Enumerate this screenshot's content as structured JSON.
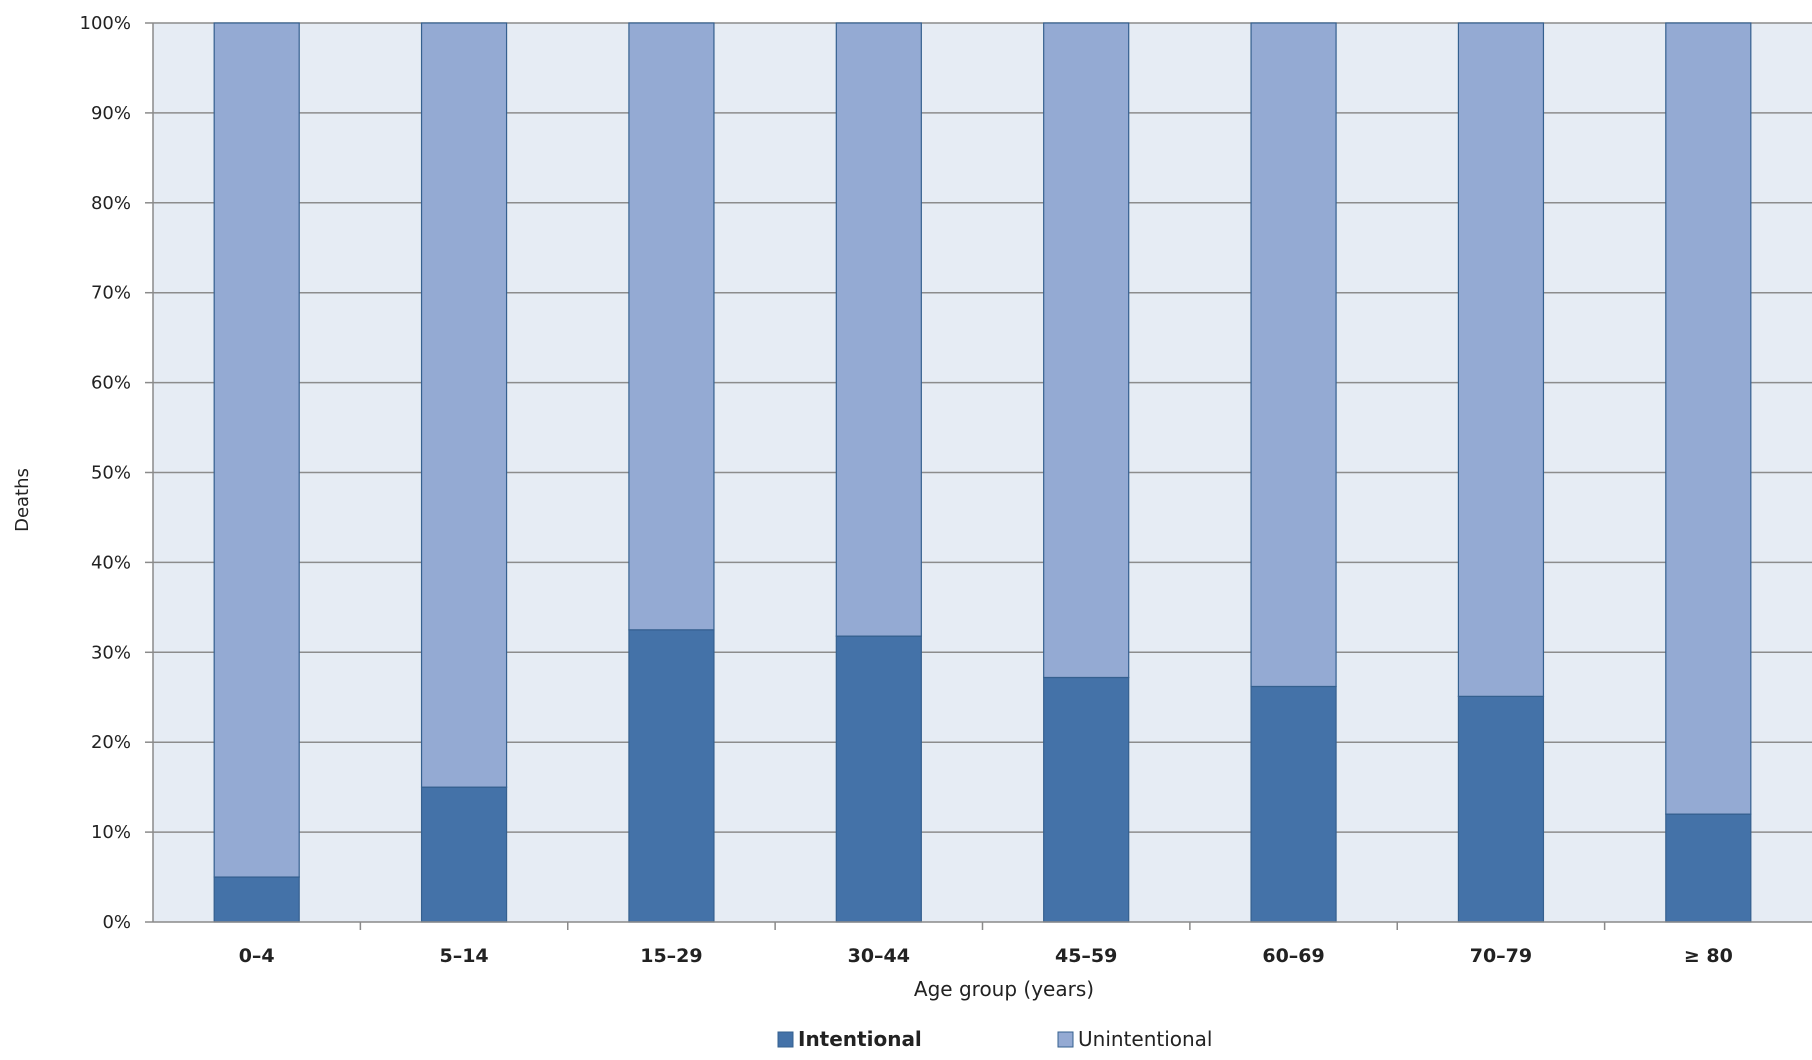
{
  "chart_data": {
    "type": "bar",
    "stacked": true,
    "normalized": true,
    "categories": [
      "0–4",
      "5–14",
      "15–29",
      "30–44",
      "45–59",
      "60–69",
      "70–79",
      "≥ 80"
    ],
    "series": [
      {
        "name": "Intentional",
        "color": "#4472A8",
        "values": [
          5,
          15,
          32.5,
          31.8,
          27.2,
          26.2,
          25.1,
          12
        ]
      },
      {
        "name": "Unintentional",
        "color": "#94AAD3",
        "values": [
          95,
          85,
          67.5,
          68.2,
          72.8,
          73.8,
          74.9,
          88
        ]
      }
    ],
    "y_ticks": [
      "0%",
      "10%",
      "20%",
      "30%",
      "40%",
      "50%",
      "60%",
      "70%",
      "80%",
      "90%",
      "100%"
    ],
    "ylim": [
      0,
      100
    ],
    "xlabel": "Age group (years)",
    "ylabel": "Deaths",
    "grid": true,
    "legend_position": "bottom",
    "plot_background": "#E6ECF4"
  }
}
